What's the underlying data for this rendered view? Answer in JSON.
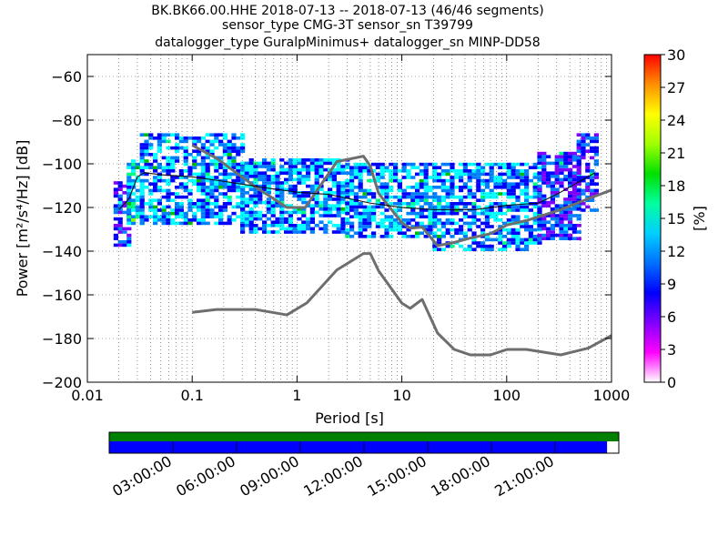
{
  "title_lines": [
    "BK.BK66.00.HHE   2018-07-13 -- 2018-07-13  (46/46 segments)",
    "sensor_type CMG-3T sensor_sn T39799",
    "datalogger_type GuralpMinimus+ datalogger_sn MINP-DD58"
  ],
  "colors": {
    "noise_model": "#6e6e6e",
    "mode_line": "#000000",
    "coverage_green": "#008000",
    "coverage_blue": "#0000ff",
    "grid": "#000000"
  },
  "chart_data": {
    "type": "heatmap",
    "xlabel": "Period [s]",
    "ylabel_text": "Power [m²/s⁴/Hz] [dB]",
    "x_scale": "log",
    "xlim": [
      0.01,
      1000
    ],
    "ylim": [
      -200,
      -50
    ],
    "x_tick_labels": [
      "0.01",
      "0.1",
      "1",
      "10",
      "100",
      "1000"
    ],
    "y_ticks": [
      -200,
      -180,
      -160,
      -140,
      -120,
      -100,
      -80,
      -60
    ],
    "y_tick_labels": [
      "−200",
      "−180",
      "−160",
      "−140",
      "−120",
      "−100",
      "−80",
      "−60"
    ],
    "grid": true,
    "colorbar": {
      "label": "[%]",
      "range": [
        0,
        30
      ],
      "ticks": [
        0,
        3,
        6,
        9,
        12,
        15,
        18,
        21,
        24,
        27,
        30
      ],
      "colormap": [
        "#ffffff",
        "#ff00ff",
        "#8000ff",
        "#0000ff",
        "#0080ff",
        "#00ffff",
        "#00ff80",
        "#00c000",
        "#80ff00",
        "#ffff00",
        "#ff8000",
        "#ff0000"
      ]
    },
    "psd_bands": [
      {
        "period": [
          0.018,
          0.025
        ],
        "db": [
          -138,
          -108
        ],
        "level": 3
      },
      {
        "period": [
          0.025,
          0.032
        ],
        "db": [
          -128,
          -98
        ],
        "level": 5
      },
      {
        "period": [
          0.032,
          0.3
        ],
        "db": [
          -128,
          -87
        ],
        "level": 4
      },
      {
        "period": [
          0.3,
          3.0
        ],
        "db": [
          -132,
          -98
        ],
        "level": 4
      },
      {
        "period": [
          3.0,
          20
        ],
        "db": [
          -134,
          -100
        ],
        "level": 4
      },
      {
        "period": [
          20,
          200
        ],
        "db": [
          -140,
          -100
        ],
        "level": 4
      },
      {
        "period": [
          200,
          500
        ],
        "db": [
          -135,
          -95
        ],
        "level": 3
      },
      {
        "period": [
          500,
          700
        ],
        "db": [
          -122,
          -86
        ],
        "level": 3
      }
    ],
    "series": [
      {
        "role": "NHNM",
        "x": [
          0.1,
          0.17,
          0.4,
          0.8,
          1.2,
          2.4,
          4.3,
          5,
          6,
          10,
          12,
          15.6,
          21.9,
          31.6,
          45,
          70,
          101,
          154,
          328,
          600,
          1000
        ],
        "y": [
          -91.5,
          -97.4,
          -110.5,
          -120,
          -120,
          -99,
          -96.5,
          -101,
          -113.5,
          -127,
          -129.5,
          -129,
          -137.5,
          -136,
          -134,
          -132,
          -128,
          -126,
          -121,
          -116,
          -112
        ]
      },
      {
        "role": "NLNM",
        "x": [
          0.1,
          0.17,
          0.4,
          0.8,
          1.24,
          2.4,
          4.3,
          5,
          6,
          10,
          12,
          15.6,
          21.9,
          31.6,
          45,
          70,
          101,
          154,
          328,
          600,
          1000
        ],
        "y": [
          -168,
          -166.7,
          -166.7,
          -169.2,
          -163.7,
          -148.6,
          -141.1,
          -141.1,
          -149,
          -163.8,
          -166.2,
          -162.1,
          -177.5,
          -185,
          -187.5,
          -187.5,
          -185,
          -185,
          -187.5,
          -184.4,
          -178.6
        ]
      },
      {
        "role": "mode",
        "x": [
          0.02,
          0.025,
          0.03,
          0.035,
          0.05,
          0.1,
          0.2,
          0.5,
          1,
          2,
          5,
          10,
          20,
          50,
          100,
          200,
          300,
          500,
          700
        ],
        "y": [
          -121,
          -116,
          -106,
          -104,
          -105,
          -106,
          -108,
          -111,
          -113,
          -114,
          -118,
          -120,
          -121,
          -121,
          -119,
          -118,
          -114,
          -108,
          -104
        ]
      }
    ],
    "coverage": {
      "time_tick_labels": [
        "03:00:00",
        "06:00:00",
        "09:00:00",
        "12:00:00",
        "15:00:00",
        "18:00:00",
        "21:00:00"
      ],
      "data_fraction": 0.977
    }
  }
}
